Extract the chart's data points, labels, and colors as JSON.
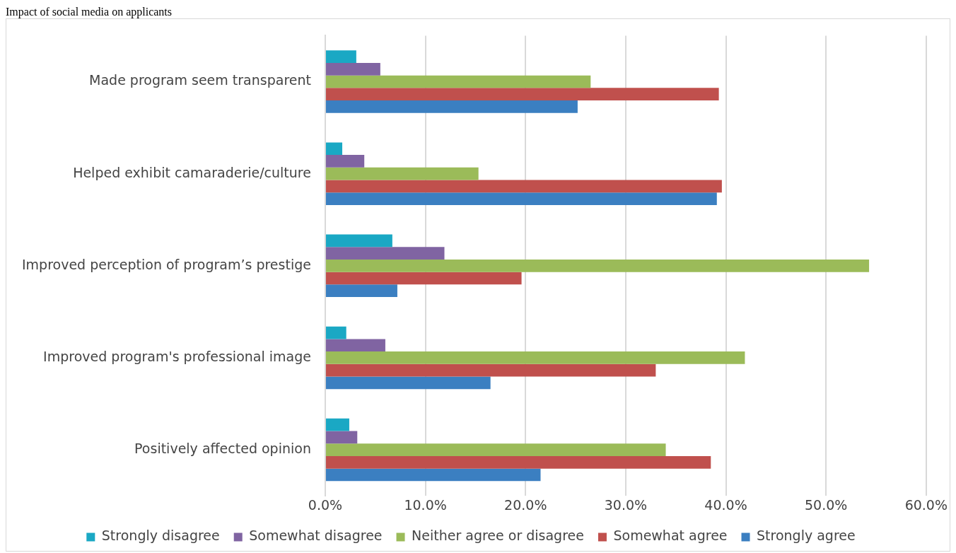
{
  "chart_data": {
    "type": "bar",
    "orientation": "horizontal",
    "title": "Impact of social media on applicants",
    "categories": [
      "Made program seem transparent",
      "Helped exhibit camaraderie/culture",
      "Improved perception of program’s prestige",
      "Improved program's professional image",
      "Positively affected opinion"
    ],
    "series": [
      {
        "name": "Strongly disagree",
        "color": "#1aa8c4",
        "values": [
          3.1,
          1.7,
          6.7,
          2.1,
          2.4
        ]
      },
      {
        "name": "Somewhat disagree",
        "color": "#8064a2",
        "values": [
          5.5,
          3.9,
          11.9,
          6.0,
          3.2
        ]
      },
      {
        "name": "Neither agree or disagree",
        "color": "#9bbb59",
        "values": [
          26.5,
          15.3,
          54.3,
          41.9,
          34.0
        ]
      },
      {
        "name": "Somewhat agree",
        "color": "#c0504d",
        "values": [
          39.3,
          39.6,
          19.6,
          33.0,
          38.5
        ]
      },
      {
        "name": "Strongly agree",
        "color": "#3b7fc1",
        "values": [
          25.2,
          39.1,
          7.2,
          16.5,
          21.5
        ]
      }
    ],
    "xlim": [
      0,
      60
    ],
    "xticks": [
      {
        "value": 0,
        "label": "0.0%"
      },
      {
        "value": 10,
        "label": "10.0%"
      },
      {
        "value": 20,
        "label": "20.0%"
      },
      {
        "value": 30,
        "label": "30.0%"
      },
      {
        "value": 40,
        "label": "40.0%"
      },
      {
        "value": 50,
        "label": "50.0%"
      },
      {
        "value": 60,
        "label": "60.0%"
      }
    ],
    "grid": "x",
    "legend": "bottom"
  }
}
